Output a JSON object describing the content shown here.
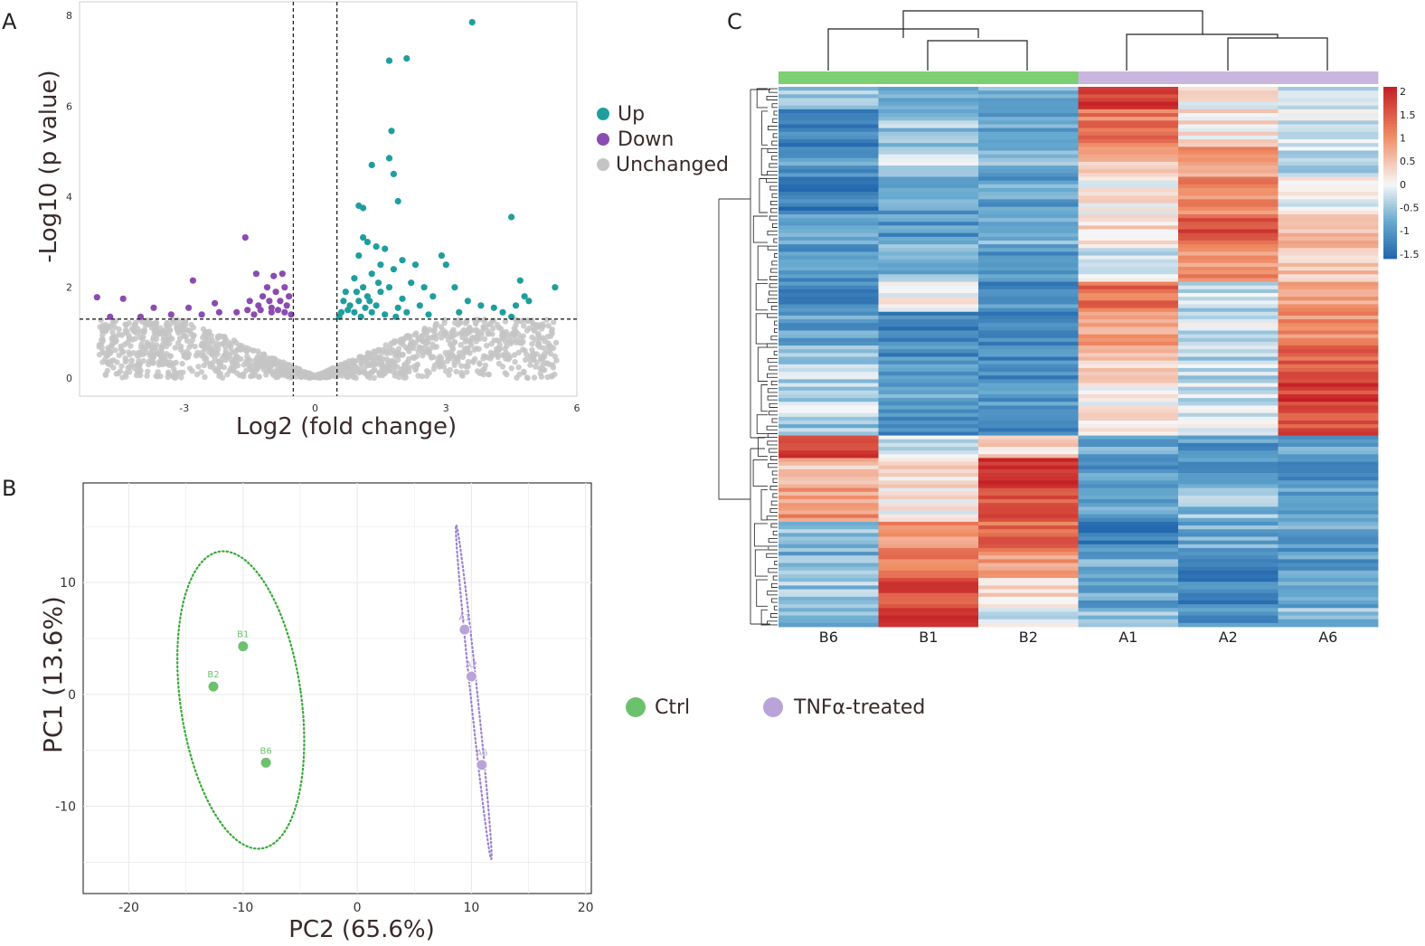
{
  "colors": {
    "up": "#1f9e9e",
    "down": "#8a4cb0",
    "unchanged": "#c4c4c4",
    "ctrl": "#6cc26c",
    "ctrl_line": "#3aa83a",
    "tnf": "#b9a3d9",
    "tnf_line": "#9b82cf",
    "heat_low": "#2166ac",
    "heat_mid": "#f7f7f7",
    "heat_high": "#c41e24"
  },
  "panels": {
    "a": "A",
    "b": "B",
    "c": "C"
  },
  "chart_data": [
    {
      "id": "volcano",
      "type": "scatter",
      "xlabel": "Log2 (fold change)",
      "ylabel": "-Log10 (p value)",
      "xlim": [
        -5.4,
        6
      ],
      "ylim": [
        -0.4,
        8.3
      ],
      "xticks": [
        "-3",
        "0",
        "3",
        "6"
      ],
      "xtick_values": [
        -3,
        0,
        3,
        6
      ],
      "yticks": [
        "0",
        "2",
        "4",
        "6",
        "8"
      ],
      "ytick_values": [
        0,
        2,
        4,
        6,
        8
      ],
      "vlines": [
        -0.5,
        0.5
      ],
      "hline": 1.3,
      "legend": [
        "Up",
        "Down",
        "Unchanged"
      ],
      "series": [
        {
          "name": "Up",
          "points": [
            [
              3.6,
              7.85
            ],
            [
              1.7,
              7.0
            ],
            [
              2.1,
              7.05
            ],
            [
              1.75,
              5.45
            ],
            [
              1.7,
              4.85
            ],
            [
              1.3,
              4.7
            ],
            [
              1.9,
              3.9
            ],
            [
              1.8,
              4.5
            ],
            [
              1.0,
              3.8
            ],
            [
              1.1,
              3.75
            ],
            [
              4.5,
              3.55
            ],
            [
              1.1,
              3.1
            ],
            [
              1.2,
              3.0
            ],
            [
              1.4,
              2.9
            ],
            [
              1.6,
              2.85
            ],
            [
              1.0,
              2.7
            ],
            [
              2.0,
              2.6
            ],
            [
              1.5,
              2.5
            ],
            [
              1.8,
              2.4
            ],
            [
              2.9,
              2.7
            ],
            [
              3.0,
              2.5
            ],
            [
              2.3,
              2.5
            ],
            [
              1.3,
              2.3
            ],
            [
              0.9,
              2.2
            ],
            [
              1.1,
              2.0
            ],
            [
              1.7,
              2.0
            ],
            [
              2.2,
              2.1
            ],
            [
              2.5,
              2.0
            ],
            [
              3.2,
              2.0
            ],
            [
              0.7,
              1.9
            ],
            [
              1.2,
              1.8
            ],
            [
              1.5,
              1.9
            ],
            [
              2.0,
              1.75
            ],
            [
              2.7,
              1.8
            ],
            [
              3.5,
              1.7
            ],
            [
              0.8,
              1.6
            ],
            [
              1.0,
              1.7
            ],
            [
              1.4,
              1.6
            ],
            [
              1.9,
              1.55
            ],
            [
              2.4,
              1.6
            ],
            [
              3.8,
              1.6
            ],
            [
              4.1,
              1.55
            ],
            [
              4.7,
              2.15
            ],
            [
              4.8,
              1.8
            ],
            [
              4.6,
              1.6
            ],
            [
              4.9,
              1.7
            ],
            [
              5.5,
              2.0
            ],
            [
              0.6,
              1.45
            ],
            [
              0.9,
              1.45
            ],
            [
              1.3,
              1.45
            ],
            [
              1.6,
              1.4
            ],
            [
              2.1,
              1.45
            ],
            [
              2.6,
              1.4
            ],
            [
              3.3,
              1.45
            ],
            [
              4.3,
              1.45
            ],
            [
              4.5,
              1.35
            ],
            [
              0.55,
              1.35
            ],
            [
              1.05,
              1.35
            ],
            [
              1.85,
              1.35
            ],
            [
              0.75,
              1.5
            ],
            [
              1.15,
              1.55
            ],
            [
              0.65,
              1.7
            ],
            [
              1.25,
              1.7
            ],
            [
              0.95,
              1.9
            ],
            [
              1.45,
              2.1
            ]
          ]
        },
        {
          "name": "Down",
          "points": [
            [
              -1.6,
              3.1
            ],
            [
              -1.35,
              2.3
            ],
            [
              -0.75,
              2.3
            ],
            [
              -0.95,
              2.25
            ],
            [
              -2.8,
              2.15
            ],
            [
              -2.3,
              1.65
            ],
            [
              -1.5,
              1.7
            ],
            [
              -1.2,
              1.8
            ],
            [
              -0.9,
              1.9
            ],
            [
              -0.7,
              2.0
            ],
            [
              -1.1,
              2.0
            ],
            [
              -1.3,
              1.6
            ],
            [
              -0.8,
              1.7
            ],
            [
              -0.6,
              1.8
            ],
            [
              -1.0,
              1.55
            ],
            [
              -5.0,
              1.78
            ],
            [
              -4.4,
              1.75
            ],
            [
              -3.7,
              1.55
            ],
            [
              -2.9,
              1.55
            ],
            [
              -4.0,
              1.35
            ],
            [
              -4.7,
              1.35
            ],
            [
              -3.3,
              1.4
            ],
            [
              -2.6,
              1.4
            ],
            [
              -2.2,
              1.45
            ],
            [
              -1.8,
              1.45
            ],
            [
              -1.4,
              1.4
            ],
            [
              -1.0,
              1.45
            ],
            [
              -0.7,
              1.45
            ],
            [
              -0.55,
              1.4
            ],
            [
              -1.25,
              1.5
            ],
            [
              -0.85,
              1.5
            ],
            [
              -0.65,
              1.6
            ],
            [
              -1.05,
              1.7
            ],
            [
              -1.55,
              1.5
            ]
          ]
        }
      ]
    },
    {
      "id": "pca",
      "type": "scatter",
      "xlabel": "PC2 (65.6%)",
      "ylabel": "PC1 (13.6%)",
      "xlim": [
        -24,
        20.5
      ],
      "ylim": [
        -17.8,
        18.9
      ],
      "xticks": [
        "-20",
        "-10",
        "0",
        "10",
        "20"
      ],
      "xtick_values": [
        -20,
        -10,
        0,
        10,
        20
      ],
      "yticks": [
        "-10",
        "0",
        "10"
      ],
      "ytick_values": [
        -10,
        0,
        10
      ],
      "legend": [
        "Ctrl",
        "TNFα-treated"
      ],
      "series": [
        {
          "name": "Ctrl",
          "points": [
            {
              "label": "B1",
              "x": -10.0,
              "y": 4.3
            },
            {
              "label": "B2",
              "x": -12.6,
              "y": 0.7
            },
            {
              "label": "B6",
              "x": -8.0,
              "y": -6.1
            }
          ],
          "ellipse": {
            "cx": -10.2,
            "cy": -0.5,
            "rx": 5.3,
            "ry": 13.4,
            "angle": -8
          }
        },
        {
          "name": "TNFα-treated",
          "points": [
            {
              "label": "A1",
              "x": 9.4,
              "y": 5.8
            },
            {
              "label": "A2",
              "x": 10.0,
              "y": 1.6
            },
            {
              "label": "A6",
              "x": 10.9,
              "y": -6.3
            }
          ],
          "ellipse": {
            "cx": 10.2,
            "cy": 0.2,
            "rx": 0.3,
            "ry": 15.0,
            "angle": -6
          }
        }
      ]
    },
    {
      "id": "heatmap",
      "type": "heatmap",
      "columns": [
        "B6",
        "B1",
        "B2",
        "A1",
        "A2",
        "A6"
      ],
      "column_groups": [
        "Ctrl",
        "Ctrl",
        "Ctrl",
        "TNFα-treated",
        "TNFα-treated",
        "TNFα-treated"
      ],
      "colorbar_ticks": [
        "2",
        "1.5",
        "1",
        "0.5",
        "0",
        "-0.5",
        "-1",
        "-1.5"
      ],
      "colorbar_values": [
        2,
        1.5,
        1,
        0.5,
        0,
        -0.5,
        -1,
        -1.5
      ],
      "value_range": [
        -1.6,
        2.1
      ],
      "row_blocks": [
        {
          "rows": 6,
          "values": [
            -0.6,
            -0.7,
            -0.8,
            1.9,
            0.1,
            -0.3
          ]
        },
        {
          "rows": 10,
          "values": [
            -1.3,
            -0.5,
            -0.9,
            1.2,
            0.2,
            -0.2
          ]
        },
        {
          "rows": 8,
          "values": [
            -1.0,
            -0.2,
            -0.7,
            0.6,
            0.9,
            -0.3
          ]
        },
        {
          "rows": 10,
          "values": [
            -1.3,
            -0.9,
            -0.9,
            0.1,
            1.1,
            0.0
          ]
        },
        {
          "rows": 8,
          "values": [
            -0.8,
            -1.0,
            -0.6,
            0.3,
            1.6,
            0.7
          ]
        },
        {
          "rows": 10,
          "values": [
            -1.0,
            -0.7,
            -1.1,
            -0.2,
            1.0,
            0.5
          ]
        },
        {
          "rows": 8,
          "values": [
            -1.2,
            0.0,
            -1.1,
            1.3,
            -0.3,
            0.9
          ]
        },
        {
          "rows": 9,
          "values": [
            -0.9,
            -1.3,
            -1.2,
            0.9,
            -0.2,
            1.0
          ]
        },
        {
          "rows": 10,
          "values": [
            -0.4,
            -1.1,
            -1.2,
            0.4,
            -0.3,
            1.4
          ]
        },
        {
          "rows": 8,
          "values": [
            -0.3,
            -0.9,
            -1.0,
            0.1,
            -0.2,
            1.8
          ]
        },
        {
          "rows": 6,
          "values": [
            -0.5,
            -1.1,
            -1.3,
            0.3,
            -0.1,
            1.6
          ]
        },
        {
          "rows": 6,
          "values": [
            1.9,
            -0.2,
            0.3,
            -0.9,
            -1.0,
            -0.8
          ]
        },
        {
          "rows": 8,
          "values": [
            0.5,
            0.2,
            1.8,
            -1.0,
            -0.9,
            -1.0
          ]
        },
        {
          "rows": 9,
          "values": [
            0.9,
            0.1,
            1.6,
            -0.9,
            -0.6,
            -0.9
          ]
        },
        {
          "rows": 7,
          "values": [
            -0.6,
            1.0,
            1.3,
            -1.3,
            -0.8,
            -0.9
          ]
        },
        {
          "rows": 8,
          "values": [
            -0.7,
            1.2,
            0.9,
            -0.8,
            -1.3,
            -1.0
          ]
        },
        {
          "rows": 8,
          "values": [
            -0.5,
            1.6,
            0.2,
            -0.9,
            -1.2,
            -0.8
          ]
        },
        {
          "rows": 5,
          "values": [
            -0.6,
            2.0,
            -0.1,
            -0.6,
            -1.0,
            -0.6
          ]
        }
      ]
    }
  ]
}
